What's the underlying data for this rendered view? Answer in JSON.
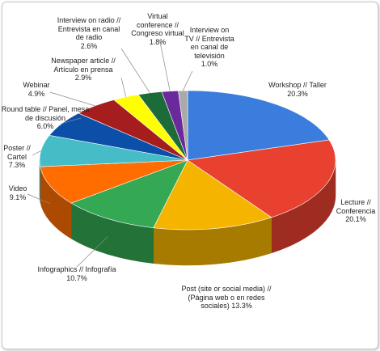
{
  "chart_data": {
    "type": "pie",
    "categories": [
      "Workshop // Taller",
      "Lecture // Conferencia",
      "Post (site or social media) // (Página web o en redes sociales)",
      "Infographics // Infografía",
      "Video",
      "Poster // Cartel",
      "Round table // Panel, mesa de discusión",
      "Webinar",
      "Newspaper article // Artículo en prensa",
      "Interview on radio // Entrevista en canal de radio",
      "Virtual conference // Congreso virtual",
      "Interview on TV // Entrevista en canal de televisión"
    ],
    "values": [
      20.3,
      20.1,
      13.3,
      10.7,
      9.1,
      7.3,
      6.0,
      4.9,
      2.9,
      2.6,
      1.8,
      1.0
    ],
    "value_labels": [
      "20.3%",
      "20.1%",
      "13.3%",
      "10.7%",
      "9.1%",
      "7.3%",
      "6.0%",
      "4.9%",
      "2.9%",
      "2.6%",
      "1.8%",
      "1.0%"
    ],
    "colors": [
      "#3b7ddd",
      "#e8412f",
      "#f5b400",
      "#34a853",
      "#ff6d01",
      "#46bdc6",
      "#0b4fa8",
      "#a51d1d",
      "#ffff00",
      "#1e6b3a",
      "#6a2a9c",
      "#aaaaaa"
    ]
  }
}
